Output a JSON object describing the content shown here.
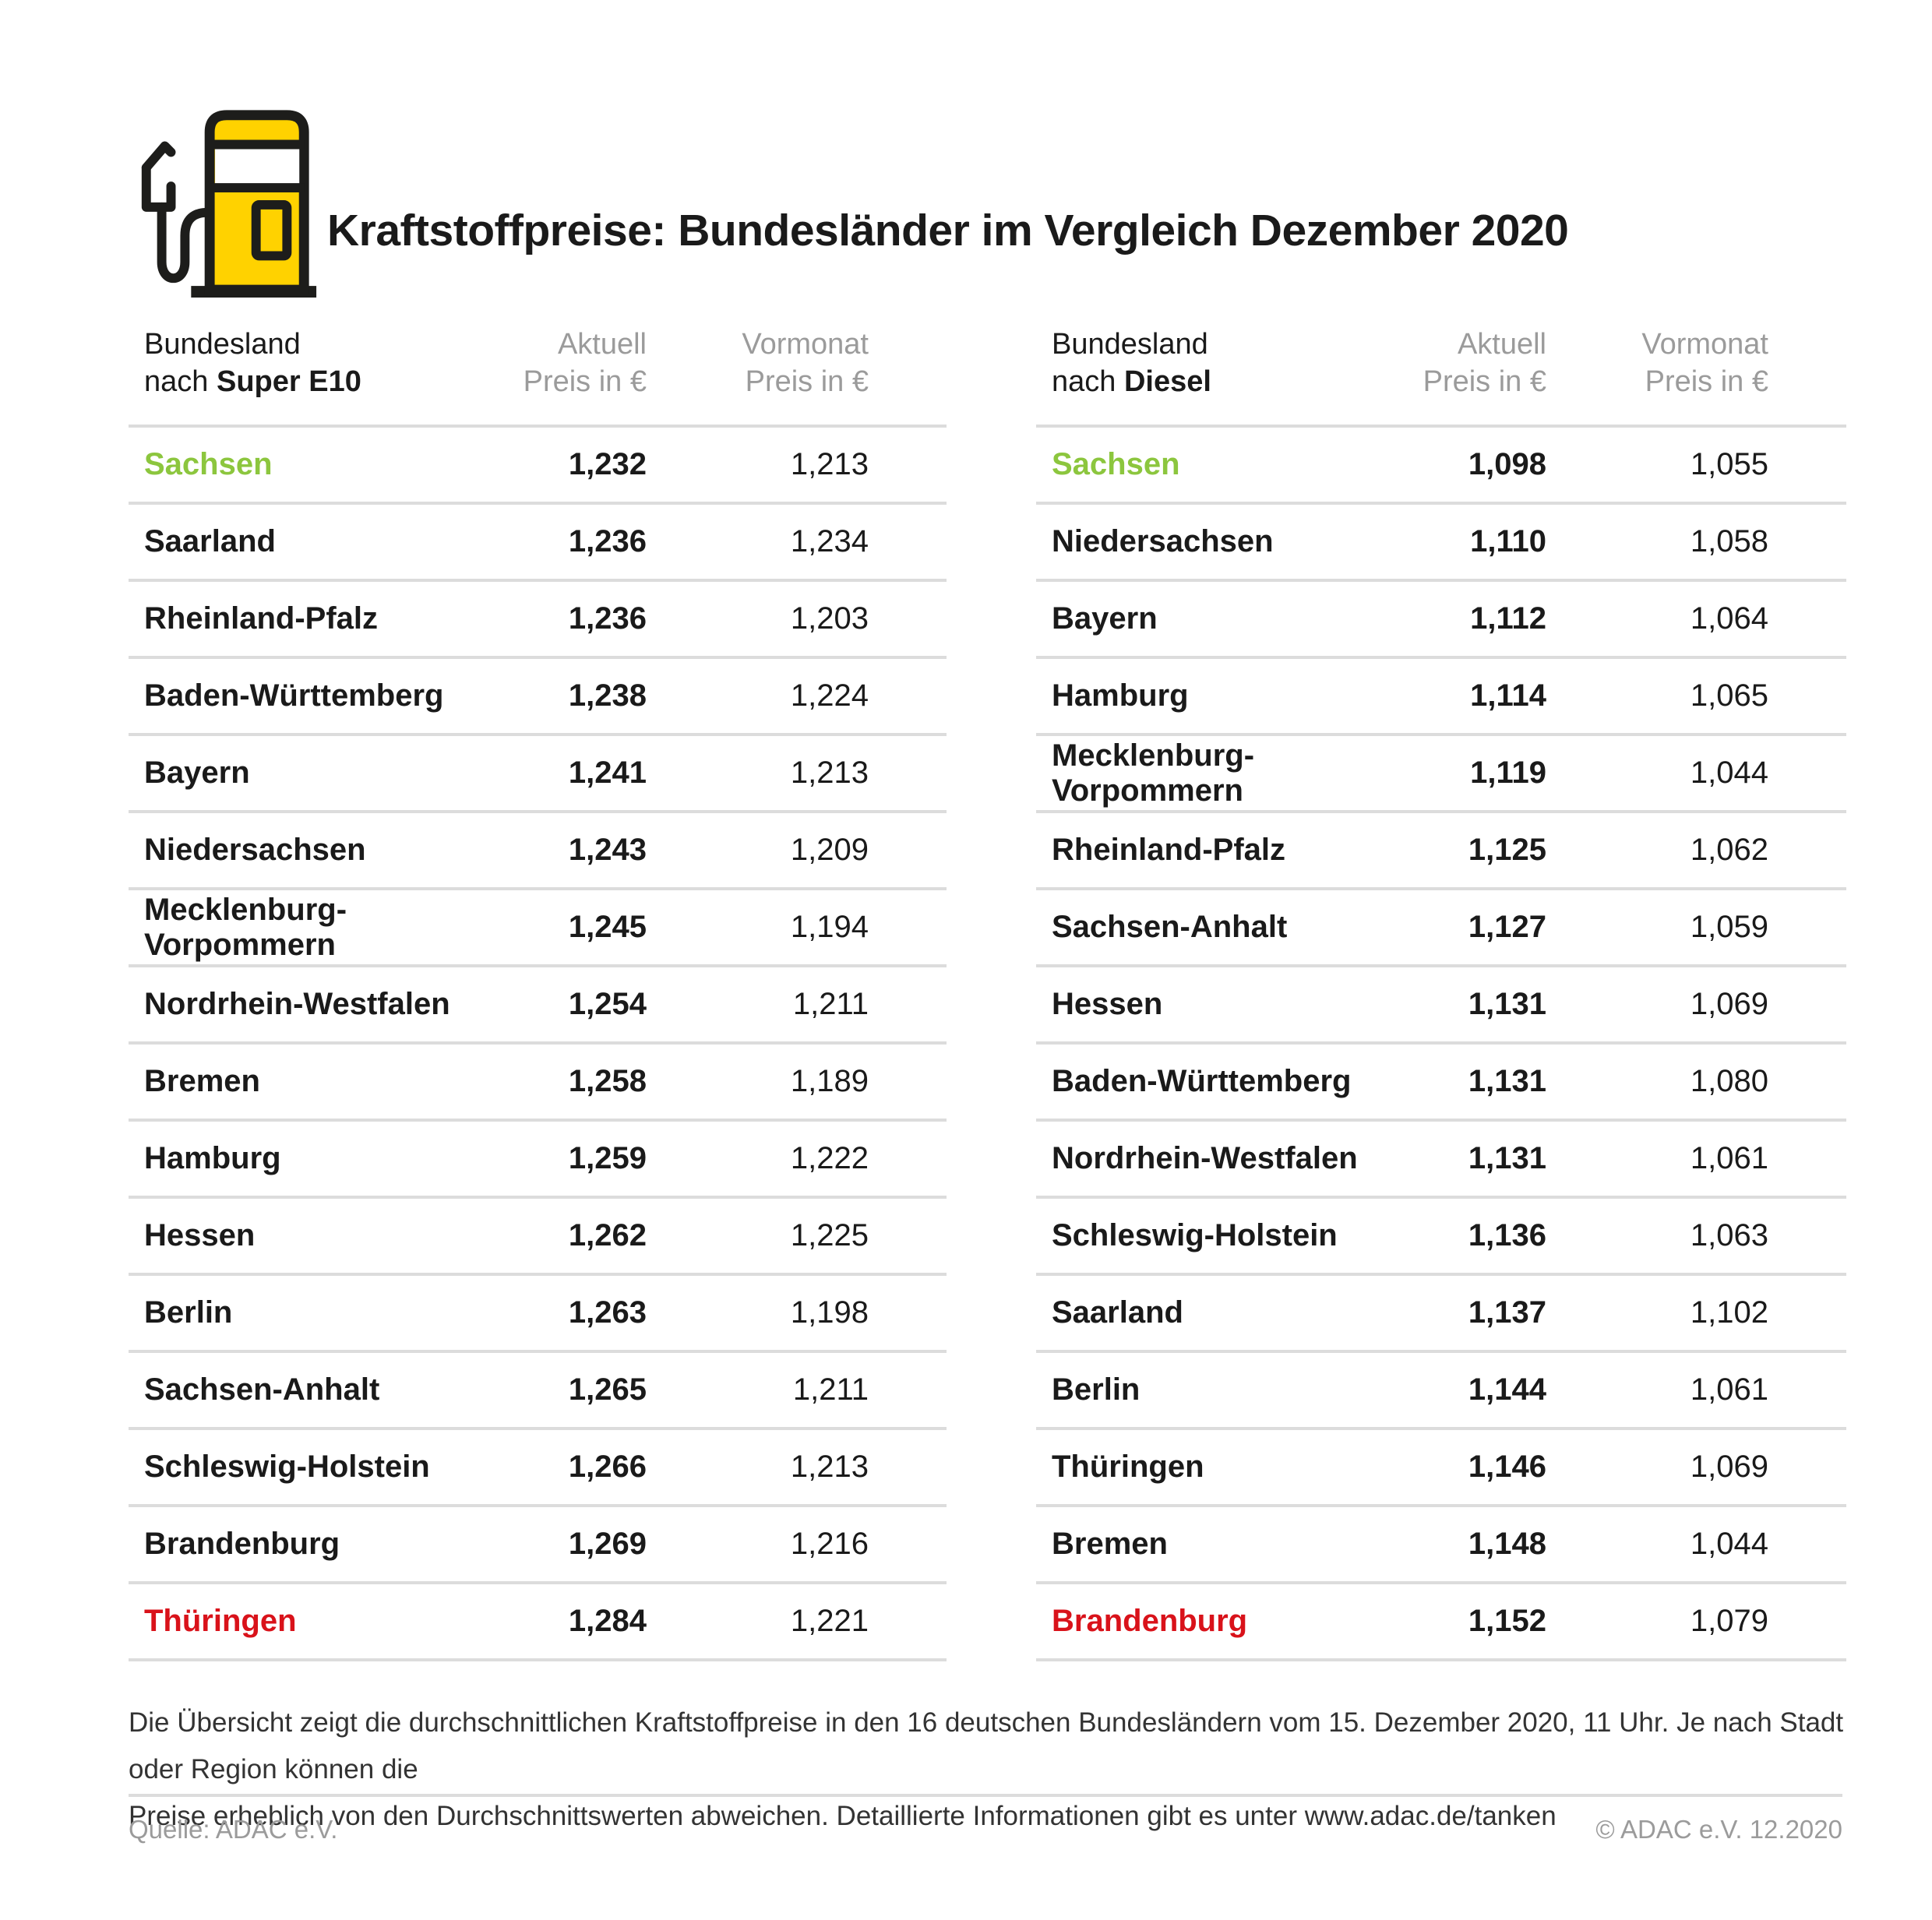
{
  "title": "Kraftstoffpreise: Bundesländer im Vergleich Dezember 2020",
  "icon": {
    "name": "fuel-pump-icon",
    "yellow": "#FFD200",
    "outline": "#1D1D1B"
  },
  "colors": {
    "highlight_green": "#8CC63E",
    "highlight_red": "#D9121A",
    "header_gray": "#9B9B9B",
    "divider": "#DCDCDC"
  },
  "tables": [
    {
      "id": "super-e10",
      "header": {
        "col1_line1": "Bundesland",
        "col1_prefix": "nach ",
        "col1_bold": "Super E10",
        "col2_line1": "Aktuell",
        "col2_line2": "Preis in €",
        "col3_line1": "Vormonat",
        "col3_line2": "Preis in €"
      },
      "rows": [
        {
          "land": "Sachsen",
          "aktuell": "1,232",
          "vormonat": "1,213",
          "highlight": "green"
        },
        {
          "land": "Saarland",
          "aktuell": "1,236",
          "vormonat": "1,234"
        },
        {
          "land": "Rheinland-Pfalz",
          "aktuell": "1,236",
          "vormonat": "1,203"
        },
        {
          "land": "Baden-Württemberg",
          "aktuell": "1,238",
          "vormonat": "1,224"
        },
        {
          "land": "Bayern",
          "aktuell": "1,241",
          "vormonat": "1,213"
        },
        {
          "land": "Niedersachsen",
          "aktuell": "1,243",
          "vormonat": "1,209"
        },
        {
          "land": "Mecklenburg-Vorpommern",
          "aktuell": "1,245",
          "vormonat": "1,194"
        },
        {
          "land": "Nordrhein-Westfalen",
          "aktuell": "1,254",
          "vormonat": "1,211"
        },
        {
          "land": "Bremen",
          "aktuell": "1,258",
          "vormonat": "1,189"
        },
        {
          "land": "Hamburg",
          "aktuell": "1,259",
          "vormonat": "1,222"
        },
        {
          "land": "Hessen",
          "aktuell": "1,262",
          "vormonat": "1,225"
        },
        {
          "land": "Berlin",
          "aktuell": "1,263",
          "vormonat": "1,198"
        },
        {
          "land": "Sachsen-Anhalt",
          "aktuell": "1,265",
          "vormonat": "1,211"
        },
        {
          "land": "Schleswig-Holstein",
          "aktuell": "1,266",
          "vormonat": "1,213"
        },
        {
          "land": "Brandenburg",
          "aktuell": "1,269",
          "vormonat": "1,216"
        },
        {
          "land": "Thüringen",
          "aktuell": "1,284",
          "vormonat": "1,221",
          "highlight": "red"
        }
      ]
    },
    {
      "id": "diesel",
      "header": {
        "col1_line1": "Bundesland",
        "col1_prefix": "nach ",
        "col1_bold": "Diesel",
        "col2_line1": "Aktuell",
        "col2_line2": "Preis in €",
        "col3_line1": "Vormonat",
        "col3_line2": "Preis in €"
      },
      "rows": [
        {
          "land": "Sachsen",
          "aktuell": "1,098",
          "vormonat": "1,055",
          "highlight": "green"
        },
        {
          "land": "Niedersachsen",
          "aktuell": "1,110",
          "vormonat": "1,058"
        },
        {
          "land": "Bayern",
          "aktuell": "1,112",
          "vormonat": "1,064"
        },
        {
          "land": "Hamburg",
          "aktuell": "1,114",
          "vormonat": "1,065"
        },
        {
          "land": "Mecklenburg-Vorpommern",
          "aktuell": "1,119",
          "vormonat": "1,044"
        },
        {
          "land": "Rheinland-Pfalz",
          "aktuell": "1,125",
          "vormonat": "1,062"
        },
        {
          "land": "Sachsen-Anhalt",
          "aktuell": "1,127",
          "vormonat": "1,059"
        },
        {
          "land": "Hessen",
          "aktuell": "1,131",
          "vormonat": "1,069"
        },
        {
          "land": "Baden-Württemberg",
          "aktuell": "1,131",
          "vormonat": "1,080"
        },
        {
          "land": "Nordrhein-Westfalen",
          "aktuell": "1,131",
          "vormonat": "1,061"
        },
        {
          "land": "Schleswig-Holstein",
          "aktuell": "1,136",
          "vormonat": "1,063"
        },
        {
          "land": "Saarland",
          "aktuell": "1,137",
          "vormonat": "1,102"
        },
        {
          "land": "Berlin",
          "aktuell": "1,144",
          "vormonat": "1,061"
        },
        {
          "land": "Thüringen",
          "aktuell": "1,146",
          "vormonat": "1,069"
        },
        {
          "land": "Bremen",
          "aktuell": "1,148",
          "vormonat": "1,044"
        },
        {
          "land": "Brandenburg",
          "aktuell": "1,152",
          "vormonat": "1,079",
          "highlight": "red"
        }
      ]
    }
  ],
  "footnote": {
    "line1": "Die Übersicht zeigt die durchschnittlichen Kraftstoffpreise in den 16 deutschen Bundesländern vom 15. Dezember 2020, 11 Uhr. Je nach Stadt oder Region können die",
    "line2": "Preise erheblich von den Durchschnittswerten abweichen. Detaillierte Informationen gibt es unter www.adac.de/tanken"
  },
  "source_left": "Quelle: ADAC e.V.",
  "source_right": "© ADAC e.V. 12.2020",
  "chart_data": [
    {
      "type": "table",
      "title": "Bundesland nach Super E10",
      "columns": [
        "Bundesland",
        "Aktuell Preis in €",
        "Vormonat Preis in €"
      ],
      "rows": [
        [
          "Sachsen",
          1.232,
          1.213
        ],
        [
          "Saarland",
          1.236,
          1.234
        ],
        [
          "Rheinland-Pfalz",
          1.236,
          1.203
        ],
        [
          "Baden-Württemberg",
          1.238,
          1.224
        ],
        [
          "Bayern",
          1.241,
          1.213
        ],
        [
          "Niedersachsen",
          1.243,
          1.209
        ],
        [
          "Mecklenburg-Vorpommern",
          1.245,
          1.194
        ],
        [
          "Nordrhein-Westfalen",
          1.254,
          1.211
        ],
        [
          "Bremen",
          1.258,
          1.189
        ],
        [
          "Hamburg",
          1.259,
          1.222
        ],
        [
          "Hessen",
          1.262,
          1.225
        ],
        [
          "Berlin",
          1.263,
          1.198
        ],
        [
          "Sachsen-Anhalt",
          1.265,
          1.211
        ],
        [
          "Schleswig-Holstein",
          1.266,
          1.213
        ],
        [
          "Brandenburg",
          1.269,
          1.216
        ],
        [
          "Thüringen",
          1.284,
          1.221
        ]
      ]
    },
    {
      "type": "table",
      "title": "Bundesland nach Diesel",
      "columns": [
        "Bundesland",
        "Aktuell Preis in €",
        "Vormonat Preis in €"
      ],
      "rows": [
        [
          "Sachsen",
          1.098,
          1.055
        ],
        [
          "Niedersachsen",
          1.11,
          1.058
        ],
        [
          "Bayern",
          1.112,
          1.064
        ],
        [
          "Hamburg",
          1.114,
          1.065
        ],
        [
          "Mecklenburg-Vorpommern",
          1.119,
          1.044
        ],
        [
          "Rheinland-Pfalz",
          1.125,
          1.062
        ],
        [
          "Sachsen-Anhalt",
          1.127,
          1.059
        ],
        [
          "Hessen",
          1.131,
          1.069
        ],
        [
          "Baden-Württemberg",
          1.131,
          1.08
        ],
        [
          "Nordrhein-Westfalen",
          1.131,
          1.061
        ],
        [
          "Schleswig-Holstein",
          1.136,
          1.063
        ],
        [
          "Saarland",
          1.137,
          1.102
        ],
        [
          "Berlin",
          1.144,
          1.061
        ],
        [
          "Thüringen",
          1.146,
          1.069
        ],
        [
          "Bremen",
          1.148,
          1.044
        ],
        [
          "Brandenburg",
          1.152,
          1.079
        ]
      ]
    }
  ]
}
